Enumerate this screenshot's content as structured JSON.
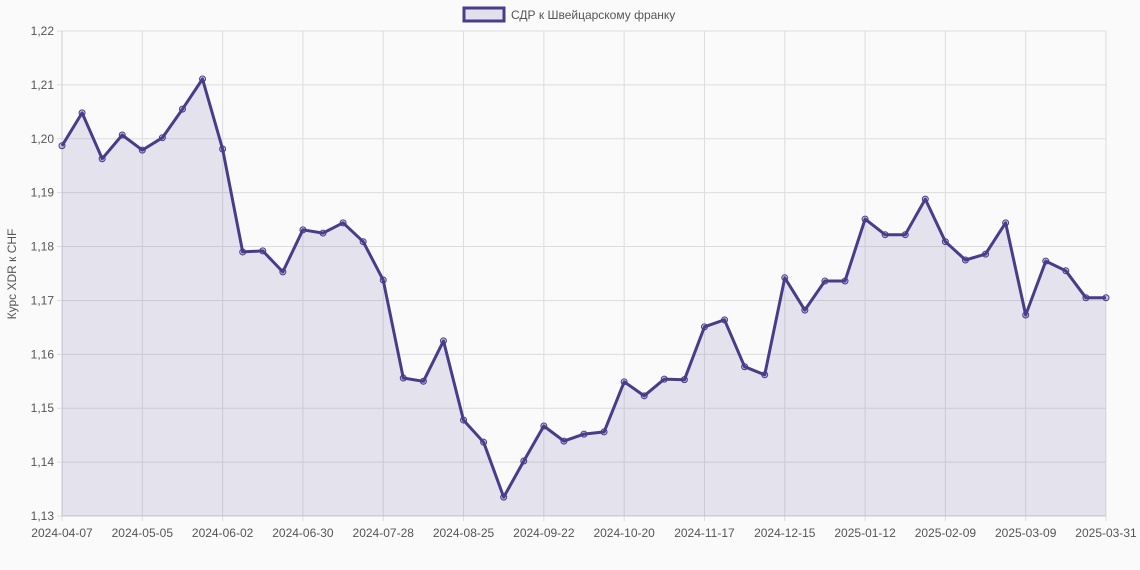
{
  "chart_data": {
    "type": "area",
    "title": "",
    "legend": {
      "label": "СДР к Швейцарскому франку",
      "placement": "top-center"
    },
    "ylabel": "Курс XDR к CHF",
    "xlabel": "",
    "ylim": [
      1.13,
      1.22
    ],
    "y_ticks": [
      "1,13",
      "1,14",
      "1,15",
      "1,16",
      "1,17",
      "1,18",
      "1,19",
      "1,20",
      "1,21",
      "1,22"
    ],
    "x_tick_labels": [
      "2024-04-07",
      "2024-05-05",
      "2024-06-02",
      "2024-06-30",
      "2024-07-28",
      "2024-08-25",
      "2024-09-22",
      "2024-10-20",
      "2024-11-17",
      "2024-12-15",
      "2025-01-12",
      "2025-02-09",
      "2025-03-09",
      "2025-03-31"
    ],
    "x_tick_indices": [
      0,
      4,
      8,
      12,
      16,
      20,
      24,
      28,
      32,
      36,
      40,
      44,
      48,
      52
    ],
    "grid": true,
    "colors": {
      "line": "#483d8b",
      "fill": "rgba(72,61,139,0.12)"
    },
    "series": [
      {
        "name": "СДР к Швейцарскому франку",
        "values": [
          1.1987,
          1.2048,
          1.1963,
          1.2007,
          1.1979,
          1.2002,
          1.2055,
          1.2111,
          1.1981,
          1.179,
          1.1792,
          1.1753,
          1.1831,
          1.1825,
          1.1844,
          1.1809,
          1.1738,
          1.1556,
          1.155,
          1.1625,
          1.1478,
          1.1437,
          1.1335,
          1.1402,
          1.1467,
          1.1439,
          1.1452,
          1.1456,
          1.1549,
          1.1523,
          1.1554,
          1.1553,
          1.1651,
          1.1664,
          1.1577,
          1.1562,
          1.1742,
          1.1682,
          1.1736,
          1.1736,
          1.1851,
          1.1822,
          1.1822,
          1.1888,
          1.1809,
          1.1775,
          1.1786,
          1.1844,
          1.1673,
          1.1773,
          1.1755,
          1.1705,
          1.1705
        ]
      }
    ]
  }
}
